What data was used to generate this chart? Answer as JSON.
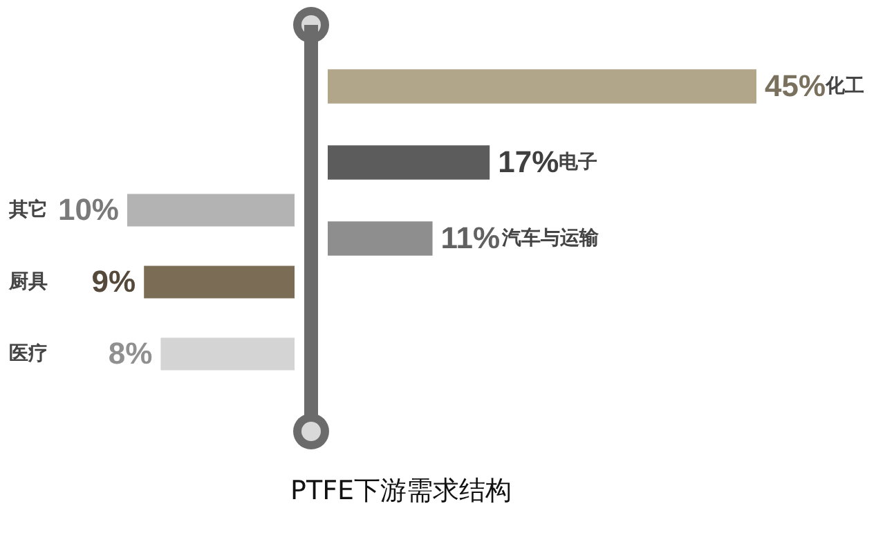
{
  "chart_data": [
    {
      "type": "bar",
      "orientation": "horizontal",
      "title": "PTFE下游需求结构",
      "categories": [
        "化工",
        "电子",
        "汽车与运输"
      ],
      "values": [
        45,
        17,
        11
      ],
      "colors": [
        "#b2a68a",
        "#5c5c5c",
        "#8e8e8e"
      ],
      "value_labels": [
        "45%",
        "17%",
        "11%"
      ],
      "xlim": [
        0,
        45
      ],
      "tick_labels": false
    },
    {
      "type": "bar",
      "orientation": "horizontal",
      "categories": [
        "其它",
        "厨具",
        "医疗"
      ],
      "values": [
        10,
        9,
        8
      ],
      "colors": [
        "#b3b3b3",
        "#7b6c56",
        "#d4d4d4"
      ],
      "value_labels": [
        "10%",
        "9%",
        "8%"
      ],
      "xlim": [
        10,
        0
      ],
      "tick_labels": false
    }
  ]
}
